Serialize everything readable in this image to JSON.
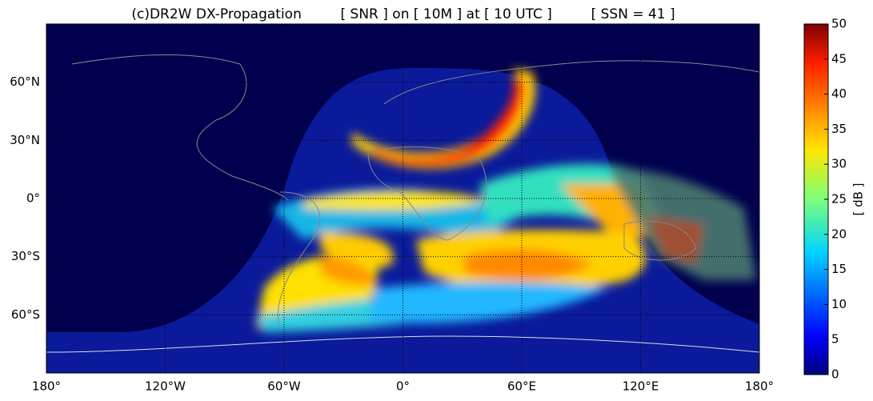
{
  "chart_data": {
    "type": "map",
    "title": "(c)DR2W DX-Propagation         [ SNR ] on [ 10M ] at [ 10 UTC ]         [ SSN = 41 ]",
    "xlim": [
      -180,
      180
    ],
    "xticks": [
      {
        "value": -180,
        "label": "180°"
      },
      {
        "value": -120,
        "label": "120°W"
      },
      {
        "value": -60,
        "label": "60°W"
      },
      {
        "value": 0,
        "label": "0°"
      },
      {
        "value": 60,
        "label": "60°E"
      },
      {
        "value": 120,
        "label": "120°E"
      },
      {
        "value": 180,
        "label": "180°"
      }
    ],
    "ylim": [
      -90,
      90
    ],
    "yticks": [
      {
        "value": -60,
        "label": "60°S"
      },
      {
        "value": -30,
        "label": "30°S"
      },
      {
        "value": 0,
        "label": "0°"
      },
      {
        "value": 30,
        "label": "30°N"
      },
      {
        "value": 60,
        "label": "60°N"
      }
    ],
    "grid": true,
    "colorbar": {
      "label": "[ dB ]",
      "lim": [
        0,
        50
      ],
      "ticks": [
        0,
        5,
        10,
        15,
        20,
        25,
        30,
        35,
        40,
        45,
        50
      ]
    }
  }
}
